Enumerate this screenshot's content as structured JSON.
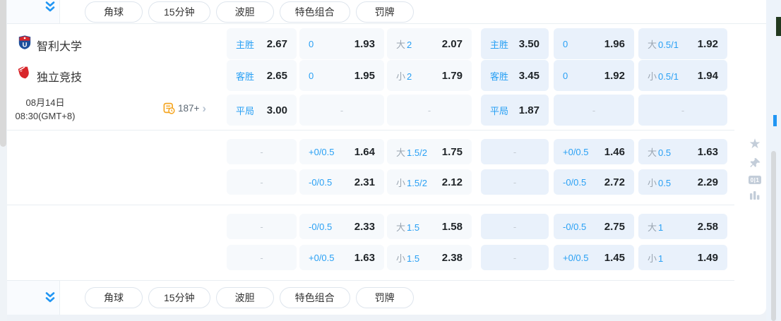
{
  "filter_pills": [
    "角球",
    "15分钟",
    "波胆",
    "特色组合",
    "罚牌"
  ],
  "match": {
    "home_team": "智利大学",
    "away_team": "独立竞技",
    "date": "08月14日",
    "time": "08:30(GMT+8)",
    "more_markets_count": "187+",
    "more_markets_chevron": "›"
  },
  "side_rail": {
    "corner_badge": "0|1"
  },
  "odds_sections": [
    {
      "name": "main-markets",
      "rows": [
        [
          {
            "label": "主胜",
            "value": "2.67"
          },
          {
            "label": "0",
            "value": "1.93"
          },
          {
            "pre": "大",
            "label": "2",
            "value": "2.07"
          },
          {
            "label": "主胜",
            "value": "3.50"
          },
          {
            "label": "0",
            "value": "1.96"
          },
          {
            "pre": "大",
            "label": "0.5/1",
            "value": "1.92"
          }
        ],
        [
          {
            "label": "客胜",
            "value": "2.65"
          },
          {
            "label": "0",
            "value": "1.95"
          },
          {
            "pre": "小",
            "label": "2",
            "value": "1.79"
          },
          {
            "label": "客胜",
            "value": "3.45"
          },
          {
            "label": "0",
            "value": "1.92"
          },
          {
            "pre": "小",
            "label": "0.5/1",
            "value": "1.94"
          }
        ],
        [
          {
            "label": "平局",
            "value": "3.00"
          },
          {
            "value": "-"
          },
          {
            "value": "-"
          },
          {
            "label": "平局",
            "value": "1.87"
          },
          {
            "value": "-"
          },
          {
            "value": "-"
          }
        ]
      ]
    },
    {
      "name": "market-group-2",
      "rows": [
        [
          {
            "value": "-"
          },
          {
            "label": "+0/0.5",
            "value": "1.64"
          },
          {
            "pre": "大",
            "label": "1.5/2",
            "value": "1.75"
          },
          {
            "value": "-"
          },
          {
            "label": "+0/0.5",
            "value": "1.46"
          },
          {
            "pre": "大",
            "label": "0.5",
            "value": "1.63"
          }
        ],
        [
          {
            "value": "-"
          },
          {
            "label": "-0/0.5",
            "value": "2.31"
          },
          {
            "pre": "小",
            "label": "1.5/2",
            "value": "2.12"
          },
          {
            "value": "-"
          },
          {
            "label": "-0/0.5",
            "value": "2.72"
          },
          {
            "pre": "小",
            "label": "0.5",
            "value": "2.29"
          }
        ]
      ]
    },
    {
      "name": "market-group-3",
      "rows": [
        [
          {
            "value": "-"
          },
          {
            "label": "-0/0.5",
            "value": "2.33"
          },
          {
            "pre": "大",
            "label": "1.5",
            "value": "1.58"
          },
          {
            "value": "-"
          },
          {
            "label": "-0/0.5",
            "value": "2.75"
          },
          {
            "pre": "大",
            "label": "1",
            "value": "2.58"
          }
        ],
        [
          {
            "value": "-"
          },
          {
            "label": "+0/0.5",
            "value": "1.63"
          },
          {
            "pre": "小",
            "label": "1.5",
            "value": "2.38"
          },
          {
            "value": "-"
          },
          {
            "label": "+0/0.5",
            "value": "1.45"
          },
          {
            "pre": "小",
            "label": "1",
            "value": "1.49"
          }
        ]
      ]
    }
  ],
  "colors": {
    "accent_blue": "#29a0f4",
    "chevron_blue": "#2196f3",
    "icon_orange": "#f5a623",
    "cell_bg_light": "#f6f9fc",
    "cell_bg_blue": "#e9f1fb",
    "odds_text": "#1f2428",
    "muted_gray": "#9aa5b1"
  }
}
